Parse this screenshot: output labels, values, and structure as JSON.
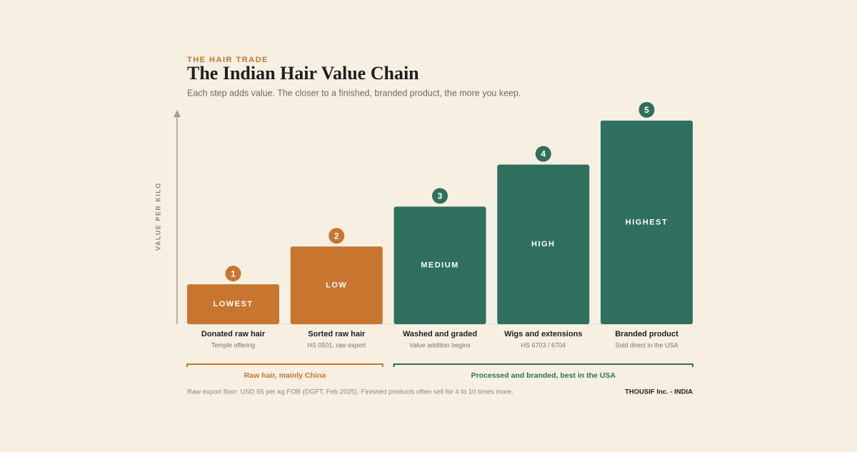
{
  "chart_data": {
    "type": "bar",
    "eyebrow": "THE HAIR TRADE",
    "title": "The Indian Hair Value Chain",
    "subtitle": "Each step adds value. The closer to a finished, branded product, the more you keep.",
    "y_label": "VALUE PER KILO",
    "categories": [
      "Donated raw hair",
      "Sorted raw hair",
      "Washed and graded",
      "Wigs and extensions",
      "Branded product"
    ],
    "sublabels": [
      "Temple offering",
      "HS 0501, raw export",
      "Value addition begins",
      "HS 6703 / 6704",
      "Sold direct in the USA"
    ],
    "steps": [
      1,
      2,
      3,
      4,
      5
    ],
    "values": [
      19,
      37,
      56,
      76,
      97
    ],
    "bar_labels": [
      "LOWEST",
      "LOW",
      "MEDIUM",
      "HIGH",
      "HIGHEST"
    ],
    "colors": [
      "#c8752f",
      "#c8752f",
      "#2f6f5e",
      "#2f6f5e",
      "#2f6f5e"
    ],
    "ylim": [
      0,
      100
    ],
    "groups": [
      {
        "label": "Raw hair, mainly China",
        "color": "#c8752f",
        "span": [
          0,
          1
        ]
      },
      {
        "label": "Processed and branded, best in the USA",
        "color": "#2f6f5e",
        "span": [
          2,
          4
        ]
      }
    ],
    "note": "Raw export floor: USD 65 per kg FOB (DGFT, Feb 2025). Finished products often sell for 4 to 10 times more.",
    "credit": "THOUSIF Inc. - INDIA"
  }
}
